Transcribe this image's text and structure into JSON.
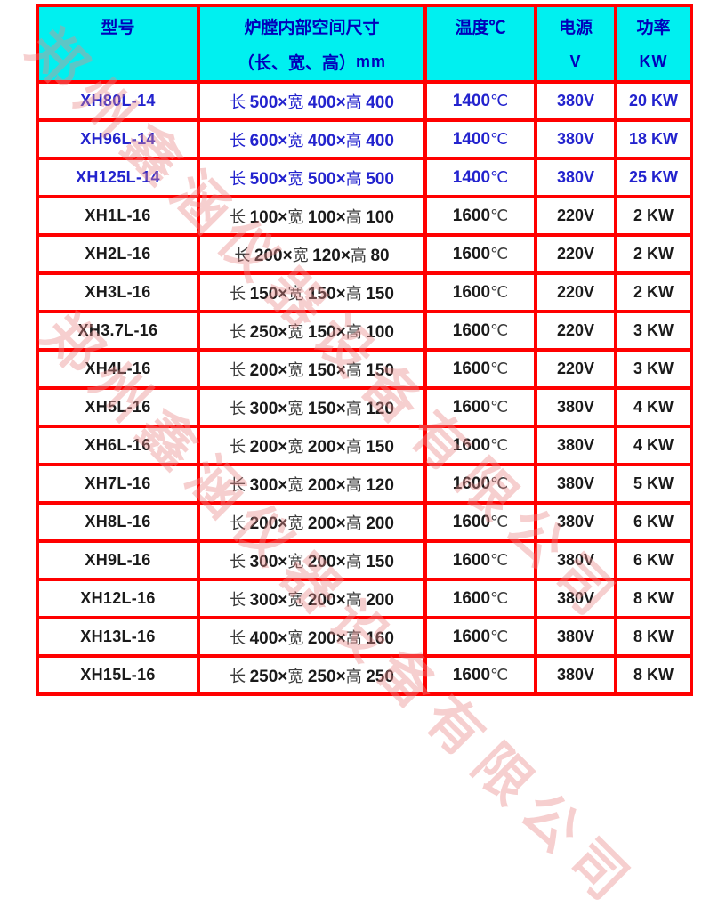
{
  "table": {
    "header": {
      "model": "型号",
      "chamber_title": "炉膛内部空间尺寸",
      "chamber_sub": "（长、宽、高）",
      "chamber_unit": "mm",
      "temperature": "温度℃",
      "supply": "电源",
      "supply_unit": "V",
      "power": "功率",
      "power_unit": "KW"
    },
    "dim_labels": {
      "length": "长",
      "width": "宽",
      "height": "高"
    },
    "times": "×",
    "degree": "℃",
    "rows": [
      {
        "model": "XH80L-14",
        "l": "500",
        "w": "400",
        "h": "400",
        "temp": "1400",
        "voltage": "380V",
        "power": "20 KW",
        "blue": true
      },
      {
        "model": "XH96L-14",
        "l": "600",
        "w": "400",
        "h": "400",
        "temp": "1400",
        "voltage": "380V",
        "power": "18 KW",
        "blue": true
      },
      {
        "model": "XH125L-14",
        "l": "500",
        "w": "500",
        "h": "500",
        "temp": "1400",
        "voltage": "380V",
        "power": "25 KW",
        "blue": true
      },
      {
        "model": "XH1L-16",
        "l": "100",
        "w": "100",
        "h": "100",
        "temp": "1600",
        "voltage": "220V",
        "power": "2 KW",
        "blue": false
      },
      {
        "model": "XH2L-16",
        "l": "200",
        "w": "120",
        "h": "80",
        "temp": "1600",
        "voltage": "220V",
        "power": "2 KW",
        "blue": false
      },
      {
        "model": "XH3L-16",
        "l": "150",
        "w": "150",
        "h": "150",
        "temp": "1600",
        "voltage": "220V",
        "power": "2 KW",
        "blue": false
      },
      {
        "model": "XH3.7L-16",
        "l": "250",
        "w": "150",
        "h": "100",
        "temp": "1600",
        "voltage": "220V",
        "power": "3 KW",
        "blue": false
      },
      {
        "model": "XH4L-16",
        "l": "200",
        "w": "150",
        "h": "150",
        "temp": "1600",
        "voltage": "220V",
        "power": "3 KW",
        "blue": false
      },
      {
        "model": "XH5L-16",
        "l": "300",
        "w": "150",
        "h": "120",
        "temp": "1600",
        "voltage": "380V",
        "power": "4 KW",
        "blue": false
      },
      {
        "model": "XH6L-16",
        "l": "200",
        "w": "200",
        "h": "150",
        "temp": "1600",
        "voltage": "380V",
        "power": "4 KW",
        "blue": false
      },
      {
        "model": "XH7L-16",
        "l": "300",
        "w": "200",
        "h": "120",
        "temp": "1600",
        "voltage": "380V",
        "power": "5 KW",
        "blue": false
      },
      {
        "model": "XH8L-16",
        "l": "200",
        "w": "200",
        "h": "200",
        "temp": "1600",
        "voltage": "380V",
        "power": "6 KW",
        "blue": false
      },
      {
        "model": "XH9L-16",
        "l": "300",
        "w": "200",
        "h": "150",
        "temp": "1600",
        "voltage": "380V",
        "power": "6 KW",
        "blue": false
      },
      {
        "model": "XH12L-16",
        "l": "300",
        "w": "200",
        "h": "200",
        "temp": "1600",
        "voltage": "380V",
        "power": "8 KW",
        "blue": false
      },
      {
        "model": "XH13L-16",
        "l": "400",
        "w": "200",
        "h": "160",
        "temp": "1600",
        "voltage": "380V",
        "power": "8 KW",
        "blue": false
      },
      {
        "model": "XH15L-16",
        "l": "250",
        "w": "250",
        "h": "250",
        "temp": "1600",
        "voltage": "380V",
        "power": "8 KW",
        "blue": false
      }
    ]
  },
  "watermark": {
    "text": "郑州鑫涵仪器设备有限公司"
  },
  "colors": {
    "border": "#FF0000",
    "header_bg": "#00F0F0",
    "header_text": "#0000BB",
    "highlight_text": "#2323CE",
    "body_text": "#1A1A1A",
    "watermark": "#E98A8A"
  }
}
